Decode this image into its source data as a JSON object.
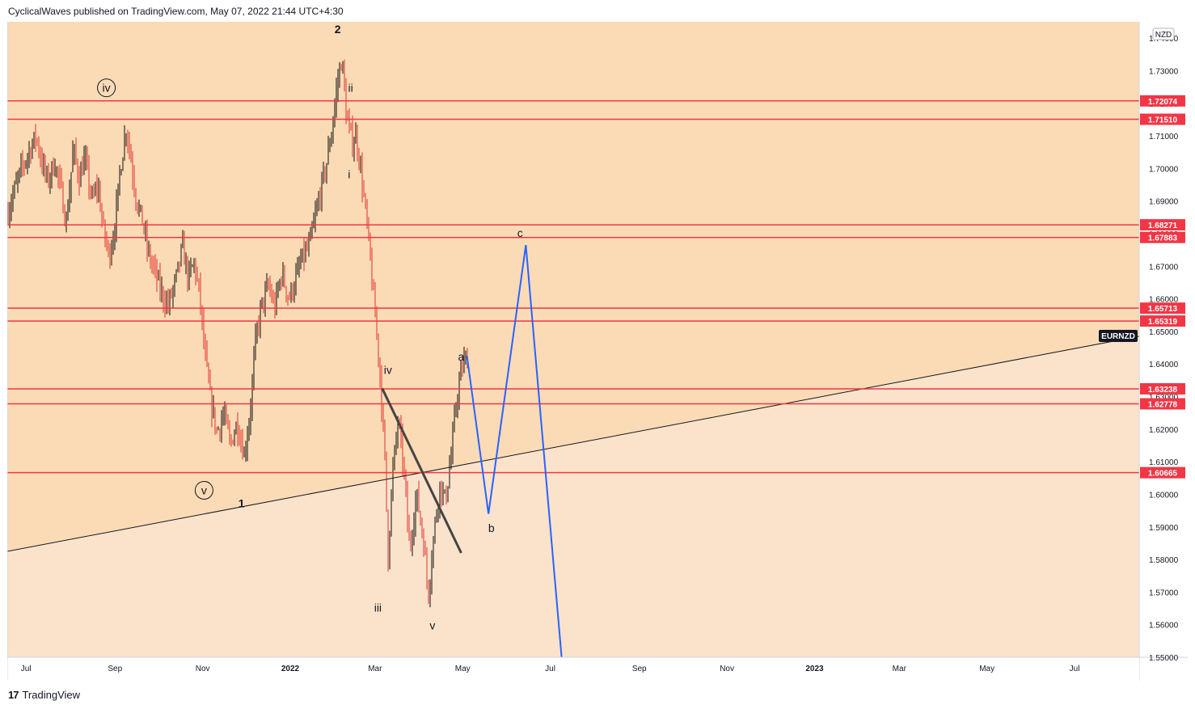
{
  "header": {
    "text": "CyclicalWaves published on TradingView.com, May 07, 2022 21:44 UTC+4:30"
  },
  "footer": {
    "brand": "TradingView",
    "logo": "17"
  },
  "currency_label": "NZD",
  "symbol_tag": "EURNZD",
  "chart_data": {
    "type": "candlestick",
    "symbol": "EURNZD",
    "y_currency": "NZD",
    "ylim": [
      1.55,
      1.745
    ],
    "y_ticks": [
      1.55,
      1.56,
      1.57,
      1.58,
      1.59,
      1.6,
      1.61,
      1.62,
      1.63,
      1.64,
      1.65,
      1.66,
      1.67,
      1.68,
      1.69,
      1.7,
      1.71,
      1.72,
      1.73,
      1.74
    ],
    "y_tick_labels": [
      "1.55000",
      "1.56000",
      "1.57000",
      "1.58000",
      "1.59000",
      "1.60000",
      "1.61000",
      "1.62000",
      "1.63000",
      "1.64000",
      "1.65000",
      "1.66000",
      "1.67000",
      "1.68000",
      "1.69000",
      "1.70000",
      "1.71000",
      "1.72000",
      "1.73000",
      "1.74000"
    ],
    "x_range": [
      "2021-06-18",
      "2023-08-15"
    ],
    "x_ticks": [
      {
        "label": "Jul",
        "date": "2021-07-01"
      },
      {
        "label": "Sep",
        "date": "2021-09-01"
      },
      {
        "label": "Nov",
        "date": "2021-11-01"
      },
      {
        "label": "2022",
        "date": "2022-01-01"
      },
      {
        "label": "Mar",
        "date": "2022-03-01"
      },
      {
        "label": "May",
        "date": "2022-05-01"
      },
      {
        "label": "Jul",
        "date": "2022-07-01"
      },
      {
        "label": "Sep",
        "date": "2022-09-01"
      },
      {
        "label": "Nov",
        "date": "2022-11-01"
      },
      {
        "label": "2023",
        "date": "2023-01-01"
      },
      {
        "label": "Mar",
        "date": "2023-03-01"
      },
      {
        "label": "May",
        "date": "2023-05-01"
      },
      {
        "label": "Jul",
        "date": "2023-07-01"
      }
    ],
    "price_path": [
      [
        "2021-06-18",
        1.686
      ],
      [
        "2021-06-22",
        1.692
      ],
      [
        "2021-06-28",
        1.7
      ],
      [
        "2021-07-03",
        1.705
      ],
      [
        "2021-07-08",
        1.71
      ],
      [
        "2021-07-12",
        1.702
      ],
      [
        "2021-07-16",
        1.696
      ],
      [
        "2021-07-21",
        1.702
      ],
      [
        "2021-07-26",
        1.692
      ],
      [
        "2021-07-29",
        1.683
      ],
      [
        "2021-08-03",
        1.706
      ],
      [
        "2021-08-07",
        1.697
      ],
      [
        "2021-08-11",
        1.703
      ],
      [
        "2021-08-16",
        1.69
      ],
      [
        "2021-08-20",
        1.695
      ],
      [
        "2021-08-24",
        1.681
      ],
      [
        "2021-08-28",
        1.673
      ],
      [
        "2021-09-01",
        1.683
      ],
      [
        "2021-09-05",
        1.701
      ],
      [
        "2021-09-09",
        1.713
      ],
      [
        "2021-09-12",
        1.703
      ],
      [
        "2021-09-16",
        1.69
      ],
      [
        "2021-09-20",
        1.684
      ],
      [
        "2021-09-24",
        1.674
      ],
      [
        "2021-09-29",
        1.668
      ],
      [
        "2021-10-03",
        1.662
      ],
      [
        "2021-10-08",
        1.658
      ],
      [
        "2021-10-13",
        1.665
      ],
      [
        "2021-10-18",
        1.676
      ],
      [
        "2021-10-22",
        1.666
      ],
      [
        "2021-10-26",
        1.671
      ],
      [
        "2021-10-30",
        1.661
      ],
      [
        "2021-11-02",
        1.645
      ],
      [
        "2021-11-06",
        1.63
      ],
      [
        "2021-11-11",
        1.619
      ],
      [
        "2021-11-16",
        1.625
      ],
      [
        "2021-11-20",
        1.615
      ],
      [
        "2021-11-25",
        1.622
      ],
      [
        "2021-11-30",
        1.612
      ],
      [
        "2021-12-04",
        1.625
      ],
      [
        "2021-12-08",
        1.648
      ],
      [
        "2021-12-12",
        1.658
      ],
      [
        "2021-12-17",
        1.664
      ],
      [
        "2021-12-21",
        1.657
      ],
      [
        "2021-12-26",
        1.668
      ],
      [
        "2021-12-31",
        1.66
      ],
      [
        "2022-01-04",
        1.665
      ],
      [
        "2022-01-09",
        1.672
      ],
      [
        "2022-01-14",
        1.676
      ],
      [
        "2022-01-18",
        1.684
      ],
      [
        "2022-01-22",
        1.693
      ],
      [
        "2022-01-26",
        1.701
      ],
      [
        "2022-01-30",
        1.712
      ],
      [
        "2022-02-03",
        1.727
      ],
      [
        "2022-02-06",
        1.734
      ],
      [
        "2022-02-09",
        1.716
      ],
      [
        "2022-02-13",
        1.708
      ],
      [
        "2022-02-16",
        1.71
      ],
      [
        "2022-02-20",
        1.696
      ],
      [
        "2022-02-24",
        1.68
      ],
      [
        "2022-02-28",
        1.66
      ],
      [
        "2022-03-04",
        1.64
      ],
      [
        "2022-03-08",
        1.61
      ],
      [
        "2022-03-10",
        1.58
      ],
      [
        "2022-03-13",
        1.605
      ],
      [
        "2022-03-17",
        1.623
      ],
      [
        "2022-03-21",
        1.608
      ],
      [
        "2022-03-25",
        1.583
      ],
      [
        "2022-03-30",
        1.6
      ],
      [
        "2022-04-04",
        1.585
      ],
      [
        "2022-04-07",
        1.569
      ],
      [
        "2022-04-11",
        1.588
      ],
      [
        "2022-04-15",
        1.603
      ],
      [
        "2022-04-19",
        1.598
      ],
      [
        "2022-04-23",
        1.612
      ],
      [
        "2022-04-27",
        1.63
      ],
      [
        "2022-05-01",
        1.64
      ],
      [
        "2022-05-05",
        1.642
      ]
    ],
    "horizontal_levels": [
      {
        "value": 1.72074,
        "label": "1.72074"
      },
      {
        "value": 1.7151,
        "label": "1.71510"
      },
      {
        "value": 1.68271,
        "label": "1.68271"
      },
      {
        "value": 1.67883,
        "label": "1.67883"
      },
      {
        "value": 1.65713,
        "label": "1.65713"
      },
      {
        "value": 1.65319,
        "label": "1.65319"
      },
      {
        "value": 1.63238,
        "label": "1.63238"
      },
      {
        "value": 1.62778,
        "label": "1.62778"
      },
      {
        "value": 1.60665,
        "label": "1.60665"
      }
    ],
    "trendline": {
      "from": [
        "2021-06-18",
        1.5825
      ],
      "to": [
        "2023-08-15",
        1.6485
      ]
    },
    "sell_line": {
      "from": [
        "2022-03-06",
        1.6325
      ],
      "to": [
        "2022-04-30",
        1.582
      ]
    },
    "projection": [
      [
        "2022-05-04",
        1.6425
      ],
      [
        "2022-05-19",
        1.594
      ],
      [
        "2022-06-14",
        1.6765
      ],
      [
        "2022-07-09",
        1.5495
      ]
    ],
    "wave_labels": [
      {
        "text": "2",
        "date": "2022-02-03",
        "price": 1.7415,
        "bold": true,
        "circled": false
      },
      {
        "text": "iv",
        "date": "2021-08-26",
        "price": 1.7235,
        "bold": false,
        "circled": true
      },
      {
        "text": "ii",
        "date": "2022-02-12",
        "price": 1.7235,
        "bold": false,
        "circled": false
      },
      {
        "text": "i",
        "date": "2022-02-11",
        "price": 1.697,
        "bold": false,
        "circled": false
      },
      {
        "text": "v",
        "date": "2021-11-02",
        "price": 1.6,
        "bold": false,
        "circled": true
      },
      {
        "text": "1",
        "date": "2021-11-28",
        "price": 1.596,
        "bold": true,
        "circled": false
      },
      {
        "text": "iv",
        "date": "2022-03-10",
        "price": 1.637,
        "bold": false,
        "circled": false
      },
      {
        "text": "iii",
        "date": "2022-03-03",
        "price": 1.564,
        "bold": false,
        "circled": false
      },
      {
        "text": "v",
        "date": "2022-04-10",
        "price": 1.5585,
        "bold": false,
        "circled": false
      },
      {
        "text": "a",
        "date": "2022-04-30",
        "price": 1.641,
        "bold": false,
        "circled": false
      },
      {
        "text": "b",
        "date": "2022-05-21",
        "price": 1.5885,
        "bold": false,
        "circled": false
      },
      {
        "text": "c",
        "date": "2022-06-10",
        "price": 1.679,
        "bold": false,
        "circled": false
      }
    ],
    "colors": {
      "zone_upper": "#fbdbb5",
      "zone_lower": "#fbe3cb",
      "level_line": "#f23645",
      "projection": "#2962ff",
      "candle": "#0d0d0d",
      "candle_down": "#e03030"
    }
  }
}
